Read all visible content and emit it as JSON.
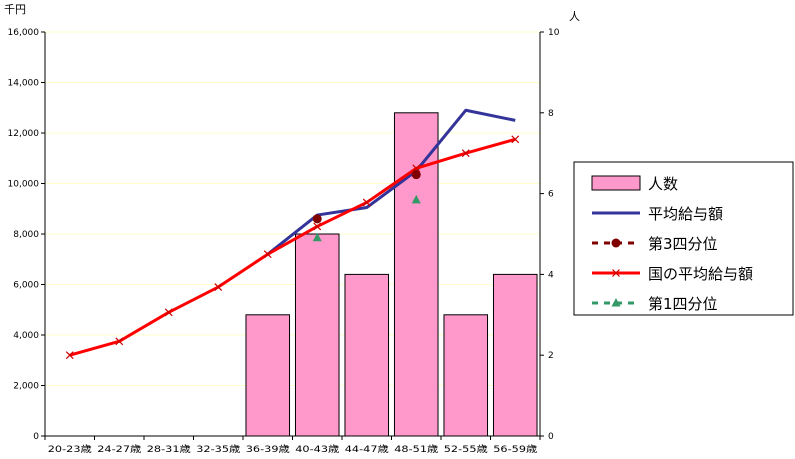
{
  "chart_data": {
    "type": "bar",
    "left_unit": "千円",
    "right_unit": "人",
    "categories": [
      "20-23歳",
      "24-27歳",
      "28-31歳",
      "32-35歳",
      "36-39歳",
      "40-43歳",
      "44-47歳",
      "48-51歳",
      "52-55歳",
      "56-59歳"
    ],
    "left_ylim": [
      0,
      16000
    ],
    "left_ticks": [
      0,
      2000,
      4000,
      6000,
      8000,
      10000,
      12000,
      14000,
      16000
    ],
    "left_tick_labels": [
      "0",
      "2,000",
      "4,000",
      "6,000",
      "8,000",
      "10,000",
      "12,000",
      "14,000",
      "16,000"
    ],
    "right_ylim": [
      0,
      10
    ],
    "right_ticks": [
      0,
      2,
      4,
      6,
      8,
      10
    ],
    "right_tick_labels": [
      "0",
      "2",
      "4",
      "6",
      "8",
      "10"
    ],
    "grid": true,
    "legend_position": "right",
    "series": [
      {
        "name": "人数",
        "kind": "bar",
        "axis": "right",
        "color": "#ff99cc",
        "values": [
          null,
          null,
          null,
          null,
          3,
          5,
          4,
          8,
          3,
          4
        ]
      },
      {
        "name": "平均給与額",
        "kind": "line",
        "axis": "left",
        "color": "#333399",
        "values": [
          null,
          null,
          null,
          null,
          7200,
          8750,
          9050,
          10500,
          12900,
          12500
        ]
      },
      {
        "name": "第3四分位",
        "kind": "marker",
        "marker": "circle",
        "axis": "left",
        "color": "#800000",
        "values": [
          null,
          null,
          null,
          null,
          null,
          8600,
          null,
          10350,
          null,
          null
        ]
      },
      {
        "name": "国の平均給与額",
        "kind": "line",
        "axis": "left",
        "color": "#ff0000",
        "values": [
          3200,
          3750,
          4900,
          5900,
          7200,
          8300,
          9250,
          10600,
          11200,
          11750
        ]
      },
      {
        "name": "第1四分位",
        "kind": "marker",
        "marker": "triangle",
        "axis": "left",
        "color": "#339966",
        "values": [
          null,
          null,
          null,
          null,
          null,
          7850,
          null,
          9350,
          null,
          null
        ]
      }
    ]
  }
}
